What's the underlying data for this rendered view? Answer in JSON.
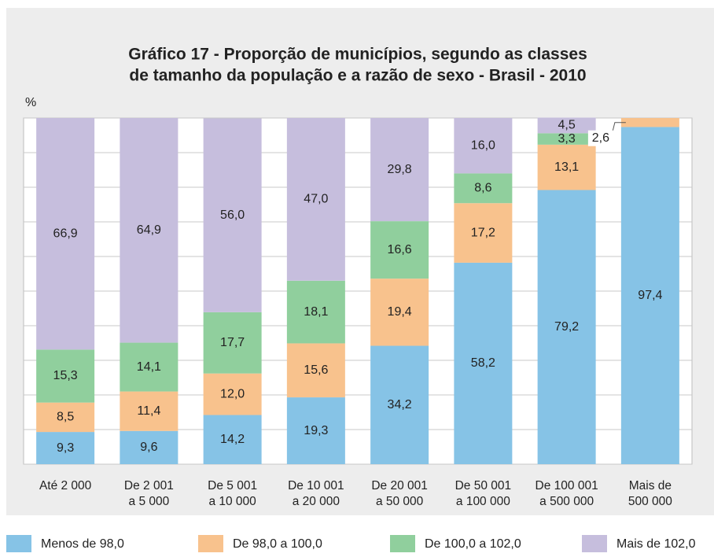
{
  "chart_data": {
    "type": "stacked_bar",
    "title": "Gráfico 17 - Proporção de municípios, segundo as classes",
    "subtitle": "de tamanho da população e a razão de sexo - Brasil - 2010",
    "y_label": "%",
    "categories": [
      "Até 2 000",
      "De 2 001\na 5 000",
      "De 5 001\na 10 000",
      "De 10 001\na 20 000",
      "De 20 001\na 50 000",
      "De 50 001\na 100 000",
      "De 100 001\na 500 000",
      "Mais de\n500 000"
    ],
    "ylim": [
      0,
      100
    ],
    "yticks": [
      0,
      10,
      20,
      30,
      40,
      50,
      60,
      70,
      80,
      90,
      100
    ],
    "grid": true,
    "legend": "bottom",
    "series": [
      {
        "name": "Menos de 98,0",
        "color": "#86c3e6",
        "values": [
          9.3,
          9.6,
          14.2,
          19.3,
          34.2,
          58.2,
          79.2,
          97.4
        ],
        "value_labels": [
          "9,3",
          "9,6",
          "14,2",
          "19,3",
          "34,2",
          "58,2",
          "79,2",
          "97,4"
        ]
      },
      {
        "name": "De 98,0 a 100,0",
        "color": "#f8c28d",
        "values": [
          8.5,
          11.4,
          12.0,
          15.6,
          19.4,
          17.2,
          13.1,
          2.6
        ],
        "value_labels": [
          "8,5",
          "11,4",
          "12,0",
          "15,6",
          "19,4",
          "17,2",
          "13,1",
          "2,6"
        ]
      },
      {
        "name": "De 100,0 a 102,0",
        "color": "#90cf9d",
        "values": [
          15.3,
          14.1,
          17.7,
          18.1,
          16.6,
          8.6,
          3.3,
          0
        ],
        "value_labels": [
          "15,3",
          "14,1",
          "17,7",
          "18,1",
          "16,6",
          "8,6",
          "3,3",
          null
        ]
      },
      {
        "name": "Mais de 102,0",
        "color": "#c6bedd",
        "values": [
          66.9,
          64.9,
          56.0,
          47.0,
          29.8,
          16.0,
          4.5,
          0
        ],
        "value_labels": [
          "66,9",
          "64,9",
          "56,0",
          "47,0",
          "29,8",
          "16,0",
          "4,5",
          null
        ]
      }
    ]
  }
}
